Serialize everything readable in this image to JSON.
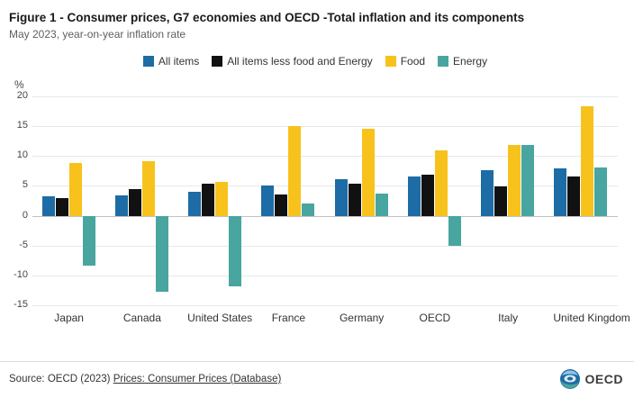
{
  "header": {
    "title": "Figure 1 - Consumer prices, G7 economies and OECD -Total inflation and its components",
    "subtitle": "May 2023, year-on-year inflation rate"
  },
  "chart_data": {
    "type": "bar",
    "title": "Consumer prices, G7 economies and OECD - Total inflation and its components",
    "categories": [
      "Japan",
      "Canada",
      "United States",
      "France",
      "Germany",
      "OECD",
      "Italy",
      "United Kingdom"
    ],
    "series": [
      {
        "name": "All items",
        "color": "#1d6ca5",
        "values": [
          3.2,
          3.4,
          4.0,
          5.1,
          6.1,
          6.5,
          7.6,
          7.9
        ]
      },
      {
        "name": "All items less food and Energy",
        "color": "#111111",
        "values": [
          2.9,
          4.4,
          5.3,
          3.6,
          5.3,
          6.9,
          4.9,
          6.5
        ]
      },
      {
        "name": "Food",
        "color": "#f8c21d",
        "values": [
          8.9,
          9.1,
          5.7,
          15.0,
          14.5,
          11.0,
          11.8,
          18.4
        ]
      },
      {
        "name": "Energy",
        "color": "#48a5a0",
        "values": [
          -8.4,
          -12.7,
          -11.8,
          2.0,
          3.7,
          -5.1,
          11.8,
          8.1
        ]
      }
    ],
    "xlabel": "",
    "ylabel": "%",
    "ylim": [
      -15,
      20
    ],
    "yticks": [
      -15,
      -10,
      -5,
      0,
      5,
      10,
      15,
      20
    ],
    "grid": true,
    "legend_position": "top"
  },
  "footer": {
    "source_prefix": "Source: OECD (2023) ",
    "source_link": "Prices: Consumer Prices (Database)",
    "logo_text": "OECD"
  }
}
